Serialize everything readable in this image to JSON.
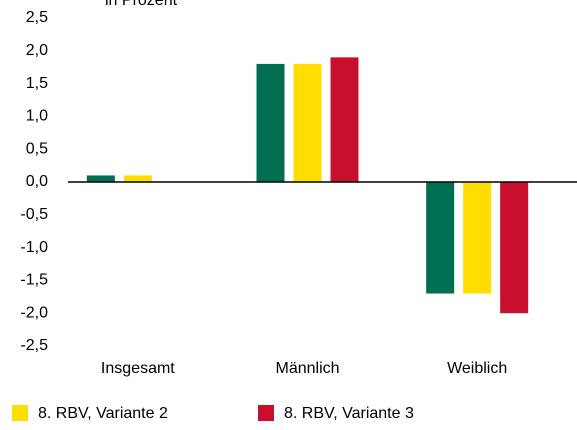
{
  "chart_data": {
    "type": "bar",
    "title": "in Prozent",
    "categories": [
      "Insgesamt",
      "Männlich",
      "Weiblich"
    ],
    "series": [
      {
        "color": "#006e50",
        "values": [
          0.1,
          1.8,
          -1.7
        ]
      },
      {
        "name": "8. RBV, Variante 2",
        "color": "#ffdd00",
        "values": [
          0.1,
          1.8,
          -1.7
        ]
      },
      {
        "name": "8. RBV, Variante 3",
        "color": "#c8102e",
        "values": [
          0,
          1.9,
          -2.0
        ]
      }
    ],
    "ylim": [
      -2.5,
      2.5
    ],
    "yticks": [
      {
        "value": 2.5,
        "label": "2,5"
      },
      {
        "value": 2.0,
        "label": "2,0"
      },
      {
        "value": 1.5,
        "label": "1,5"
      },
      {
        "value": 1.0,
        "label": "1,0"
      },
      {
        "value": 0.5,
        "label": "0,5"
      },
      {
        "value": 0,
        "label": "0,0"
      },
      {
        "value": -0.5,
        "label": "-0,5"
      },
      {
        "value": -1.0,
        "label": "-1,0"
      },
      {
        "value": -1.5,
        "label": "-1,5"
      },
      {
        "value": -2.0,
        "label": "-2,0"
      },
      {
        "value": -2.5,
        "label": "-2,5"
      }
    ],
    "grid": false
  }
}
